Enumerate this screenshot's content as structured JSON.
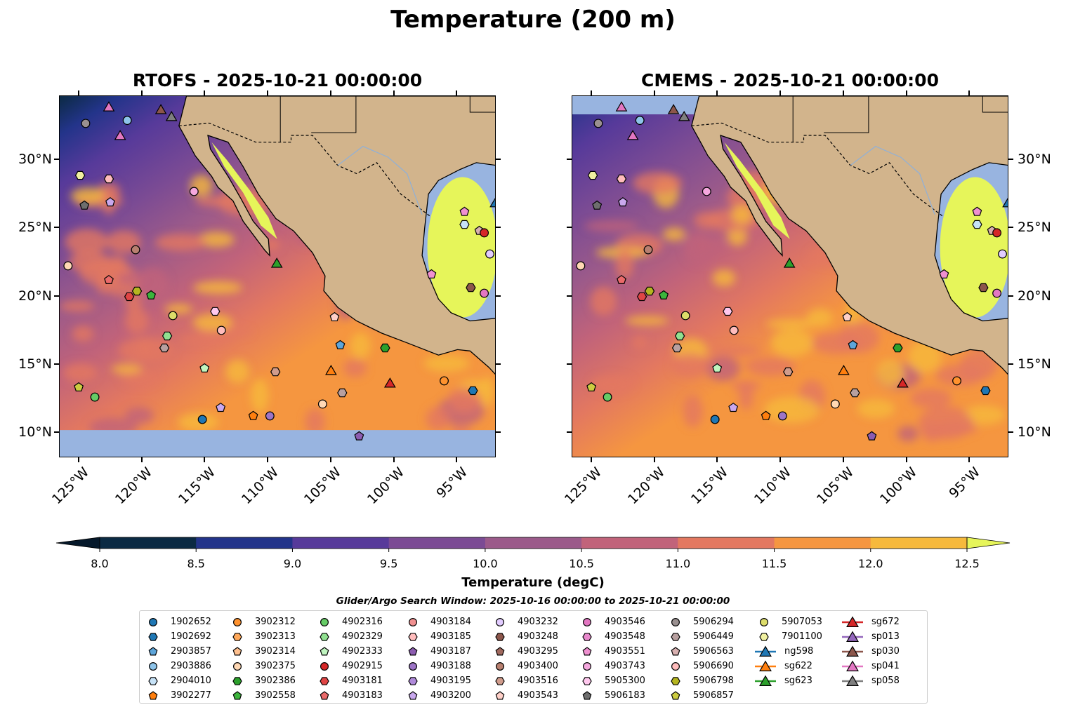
{
  "title": "Temperature (200 m)",
  "panels": [
    {
      "title": "RTOFS - 2025-10-21 00:00:00",
      "model": "RTOFS"
    },
    {
      "title": "CMEMS - 2025-10-21 00:00:00",
      "model": "CMEMS"
    }
  ],
  "axes": {
    "x_ticks": [
      {
        "value": -125,
        "label": "125°W"
      },
      {
        "value": -120,
        "label": "120°W"
      },
      {
        "value": -115,
        "label": "115°W"
      },
      {
        "value": -110,
        "label": "110°W"
      },
      {
        "value": -105,
        "label": "105°W"
      },
      {
        "value": -100,
        "label": "100°W"
      },
      {
        "value": -95,
        "label": "95°W"
      }
    ],
    "y_ticks": [
      {
        "value": 10,
        "label": "10°N"
      },
      {
        "value": 15,
        "label": "15°N"
      },
      {
        "value": 20,
        "label": "20°N"
      },
      {
        "value": 25,
        "label": "25°N"
      },
      {
        "value": 30,
        "label": "30°N"
      }
    ],
    "lon_range": [
      -126.56,
      -91.9
    ],
    "lat_range": [
      8.15,
      34.68
    ]
  },
  "colorbar": {
    "label": "Temperature (degC)",
    "ticks": [
      "8.0",
      "8.5",
      "9.0",
      "9.5",
      "10.0",
      "10.5",
      "11.0",
      "11.5",
      "12.0",
      "12.5"
    ],
    "levels": [
      8.0,
      8.5,
      9.0,
      9.5,
      10.0,
      10.5,
      11.0,
      11.5,
      12.0,
      12.5
    ],
    "colors": [
      "#0b2a43",
      "#23348a",
      "#573a9a",
      "#7b4b94",
      "#9b5a8a",
      "#c1637a",
      "#e37860",
      "#f59640",
      "#f6b93c"
    ],
    "under_color": "#05182a",
    "over_color": "#e6f55a"
  },
  "colors": {
    "land": "#d2b48c",
    "nodata": "#98b4e0",
    "yellow": "#e6f55a"
  },
  "search_window": "Glider/Argo Search Window: 2025-10-16 00:00:00 to 2025-10-21 00:00:00",
  "legend": [
    {
      "label": "1902652",
      "shape": "circle",
      "color": "#1f77b4"
    },
    {
      "label": "1902692",
      "shape": "hexagon",
      "color": "#1f77b4"
    },
    {
      "label": "2903857",
      "shape": "pentagon",
      "color": "#5da5da"
    },
    {
      "label": "2903886",
      "shape": "circle",
      "color": "#8ec4ea"
    },
    {
      "label": "2904010",
      "shape": "hexagon",
      "color": "#c6e2f7"
    },
    {
      "label": "3902277",
      "shape": "pentagon",
      "color": "#ff7f0e"
    },
    {
      "label": "3902312",
      "shape": "circle",
      "color": "#ff922e"
    },
    {
      "label": "3902313",
      "shape": "hexagon",
      "color": "#ffa85a"
    },
    {
      "label": "3902314",
      "shape": "pentagon",
      "color": "#ffc08e"
    },
    {
      "label": "3902375",
      "shape": "circle",
      "color": "#ffd8b4"
    },
    {
      "label": "3902386",
      "shape": "hexagon",
      "color": "#2ca02c"
    },
    {
      "label": "3902558",
      "shape": "pentagon",
      "color": "#3cb43c"
    },
    {
      "label": "4902316",
      "shape": "circle",
      "color": "#66cc66"
    },
    {
      "label": "4902329",
      "shape": "hexagon",
      "color": "#90e090"
    },
    {
      "label": "4902333",
      "shape": "pentagon",
      "color": "#c0f5c0"
    },
    {
      "label": "4902915",
      "shape": "circle",
      "color": "#d62728"
    },
    {
      "label": "4903181",
      "shape": "hexagon",
      "color": "#e04545"
    },
    {
      "label": "4903183",
      "shape": "pentagon",
      "color": "#ea6a6a"
    },
    {
      "label": "4903184",
      "shape": "circle",
      "color": "#f09090"
    },
    {
      "label": "4903185",
      "shape": "hexagon",
      "color": "#ffbcbc"
    },
    {
      "label": "4903187",
      "shape": "pentagon",
      "color": "#8c5cb0"
    },
    {
      "label": "4903188",
      "shape": "circle",
      "color": "#9d74c6"
    },
    {
      "label": "4903195",
      "shape": "hexagon",
      "color": "#b08ada"
    },
    {
      "label": "4903200",
      "shape": "pentagon",
      "color": "#c9a8ee"
    },
    {
      "label": "4903232",
      "shape": "circle",
      "color": "#e2ccff"
    },
    {
      "label": "4903248",
      "shape": "hexagon",
      "color": "#8c564b"
    },
    {
      "label": "4903295",
      "shape": "pentagon",
      "color": "#a0695e"
    },
    {
      "label": "4903400",
      "shape": "circle",
      "color": "#b88070"
    },
    {
      "label": "4903516",
      "shape": "hexagon",
      "color": "#d09c8c"
    },
    {
      "label": "4903543",
      "shape": "pentagon",
      "color": "#ffd0c8"
    },
    {
      "label": "4903546",
      "shape": "circle",
      "color": "#e377c2"
    },
    {
      "label": "4903548",
      "shape": "hexagon",
      "color": "#e888cc"
    },
    {
      "label": "4903551",
      "shape": "pentagon",
      "color": "#ef90d0"
    },
    {
      "label": "4903743",
      "shape": "circle",
      "color": "#f5a8de"
    },
    {
      "label": "5905300",
      "shape": "hexagon",
      "color": "#ffc8ee"
    },
    {
      "label": "5906183",
      "shape": "pentagon",
      "color": "#6e6e6e"
    },
    {
      "label": "5906294",
      "shape": "circle",
      "color": "#9a9090"
    },
    {
      "label": "5906449",
      "shape": "hexagon",
      "color": "#b8a0a0"
    },
    {
      "label": "5906563",
      "shape": "pentagon",
      "color": "#d8b0b0"
    },
    {
      "label": "5906690",
      "shape": "circle",
      "color": "#ffbcbc"
    },
    {
      "label": "5906798",
      "shape": "hexagon",
      "color": "#b5b520"
    },
    {
      "label": "5906857",
      "shape": "pentagon",
      "color": "#cccc40"
    },
    {
      "label": "5907053",
      "shape": "circle",
      "color": "#dcdc6a"
    },
    {
      "label": "7901100",
      "shape": "hexagon",
      "color": "#f0f0a0"
    },
    {
      "label": "ng598",
      "shape": "triangle",
      "color": "#1f77b4"
    },
    {
      "label": "sg622",
      "shape": "triangle",
      "color": "#ff7f0e"
    },
    {
      "label": "sg623",
      "shape": "triangle",
      "color": "#2ca02c"
    },
    {
      "label": "sg672",
      "shape": "triangle",
      "color": "#d62728"
    },
    {
      "label": "sp013",
      "shape": "triangle",
      "color": "#9467bd"
    },
    {
      "label": "sp030",
      "shape": "triangle",
      "color": "#8c564b"
    },
    {
      "label": "sp041",
      "shape": "triangle",
      "color": "#e377c2"
    },
    {
      "label": "sp058",
      "shape": "triangle",
      "color": "#7f7f7f"
    }
  ],
  "observations": [
    {
      "id": "sp041",
      "lon": -122.66,
      "lat": 33.9
    },
    {
      "id": "sp030",
      "lon": -118.53,
      "lat": 33.7
    },
    {
      "id": "sp058",
      "lon": -117.69,
      "lat": 33.19
    },
    {
      "id": "2903886",
      "lon": -121.2,
      "lat": 32.9
    },
    {
      "id": "5906294",
      "lon": -124.5,
      "lat": 32.68
    },
    {
      "id": "sp041",
      "lon": -121.76,
      "lat": 31.8
    },
    {
      "id": "7901100",
      "lon": -124.94,
      "lat": 28.87
    },
    {
      "id": "4903185",
      "lon": -122.66,
      "lat": 28.61
    },
    {
      "id": "5906183",
      "lon": -124.6,
      "lat": 26.66
    },
    {
      "id": "4903200",
      "lon": -122.55,
      "lat": 26.9
    },
    {
      "id": "4903400",
      "lon": -120.54,
      "lat": 23.42
    },
    {
      "id": "3902375",
      "lon": -125.9,
      "lat": 22.24
    },
    {
      "id": "4903183",
      "lon": -122.66,
      "lat": 21.2
    },
    {
      "id": "4903181",
      "lon": -121.04,
      "lat": 19.98
    },
    {
      "id": "5906798",
      "lon": -120.43,
      "lat": 20.39
    },
    {
      "id": "3902558",
      "lon": -119.31,
      "lat": 20.08
    },
    {
      "id": "5907053",
      "lon": -117.58,
      "lat": 18.59
    },
    {
      "id": "4902329",
      "lon": -118.03,
      "lat": 17.1
    },
    {
      "id": "5906449",
      "lon": -118.25,
      "lat": 16.22
    },
    {
      "id": "4903743",
      "lon": -115.9,
      "lat": 27.69
    },
    {
      "id": "5905300",
      "lon": -114.23,
      "lat": 18.9
    },
    {
      "id": "5906690",
      "lon": -113.73,
      "lat": 17.51
    },
    {
      "id": "4902333",
      "lon": -115.07,
      "lat": 14.73
    },
    {
      "id": "5906857",
      "lon": -125.05,
      "lat": 13.34
    },
    {
      "id": "4902316",
      "lon": -123.77,
      "lat": 12.62
    },
    {
      "id": "4903200",
      "lon": -113.79,
      "lat": 11.84
    },
    {
      "id": "1902652",
      "lon": -115.24,
      "lat": 10.98
    },
    {
      "id": "3902277",
      "lon": -111.2,
      "lat": 11.24
    },
    {
      "id": "4903188",
      "lon": -109.88,
      "lat": 11.24
    },
    {
      "id": "4903516",
      "lon": -109.44,
      "lat": 14.47
    },
    {
      "id": "sg623",
      "lon": -109.33,
      "lat": 22.44
    },
    {
      "id": "4903543",
      "lon": -104.75,
      "lat": 18.48
    },
    {
      "id": "2903857",
      "lon": -104.3,
      "lat": 16.43
    },
    {
      "id": "sg622",
      "lon": -105.03,
      "lat": 14.58
    },
    {
      "id": "3902375",
      "lon": -105.7,
      "lat": 12.11
    },
    {
      "id": "5906449",
      "lon": -104.14,
      "lat": 12.93
    },
    {
      "id": "3902386",
      "lon": -100.74,
      "lat": 16.22
    },
    {
      "id": "sg672",
      "lon": -100.35,
      "lat": 13.65
    },
    {
      "id": "4903187",
      "lon": -102.8,
      "lat": 9.75
    },
    {
      "id": "3902312",
      "lon": -96.05,
      "lat": 13.81
    },
    {
      "id": "1902692",
      "lon": -93.77,
      "lat": 13.09
    },
    {
      "id": "ng598",
      "lon": -91.98,
      "lat": 26.87
    },
    {
      "id": "4903551",
      "lon": -94.44,
      "lat": 26.2
    },
    {
      "id": "2904010",
      "lon": -94.44,
      "lat": 25.27
    },
    {
      "id": "5906563",
      "lon": -93.26,
      "lat": 24.81
    },
    {
      "id": "4902915",
      "lon": -92.87,
      "lat": 24.66
    },
    {
      "id": "4903232",
      "lon": -92.43,
      "lat": 23.11
    },
    {
      "id": "4903551",
      "lon": -97.06,
      "lat": 21.62
    },
    {
      "id": "4903248",
      "lon": -93.94,
      "lat": 20.64
    },
    {
      "id": "4903546",
      "lon": -92.87,
      "lat": 20.23
    }
  ]
}
